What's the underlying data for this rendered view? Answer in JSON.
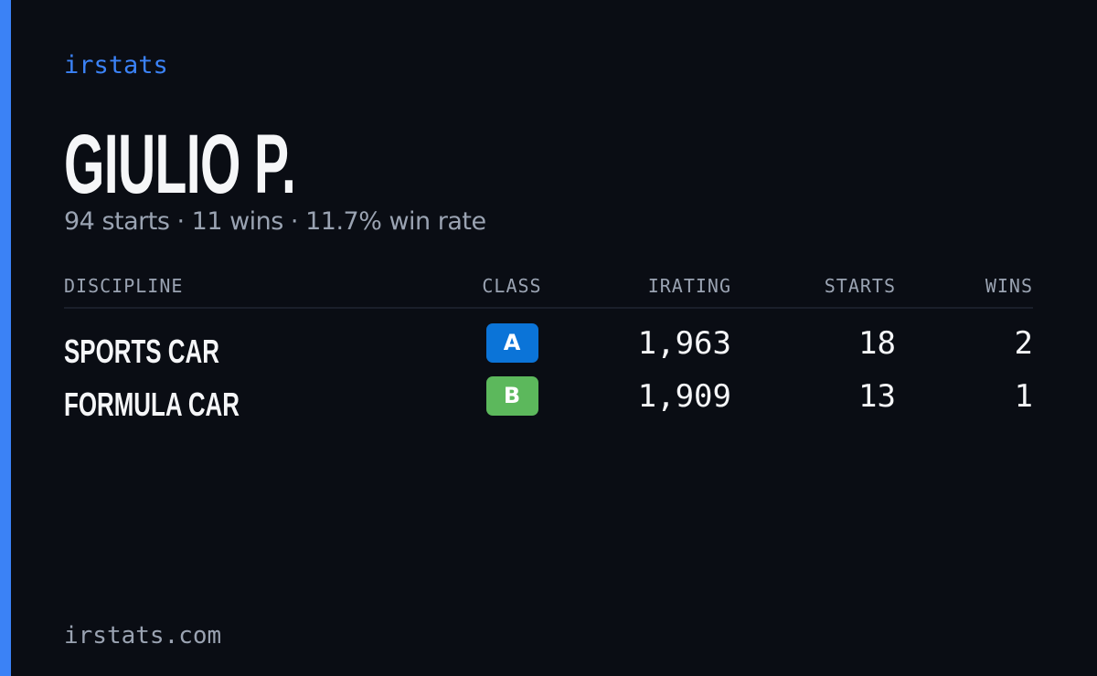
{
  "brand": "irstats",
  "driver": {
    "name": "GIULIO P.",
    "summary": "94 starts · 11 wins · 11.7% win rate"
  },
  "table": {
    "columns": [
      "DISCIPLINE",
      "CLASS",
      "IRATING",
      "STARTS",
      "WINS"
    ],
    "rows": [
      [
        "SPORTS CAR",
        "A",
        "1,963",
        "18",
        "2"
      ],
      [
        "FORMULA CAR",
        "B",
        "1,909",
        "13",
        "1"
      ]
    ],
    "class_colors": [
      "#0b74d8",
      "#5cb85c"
    ]
  },
  "footer": "irstats.com"
}
